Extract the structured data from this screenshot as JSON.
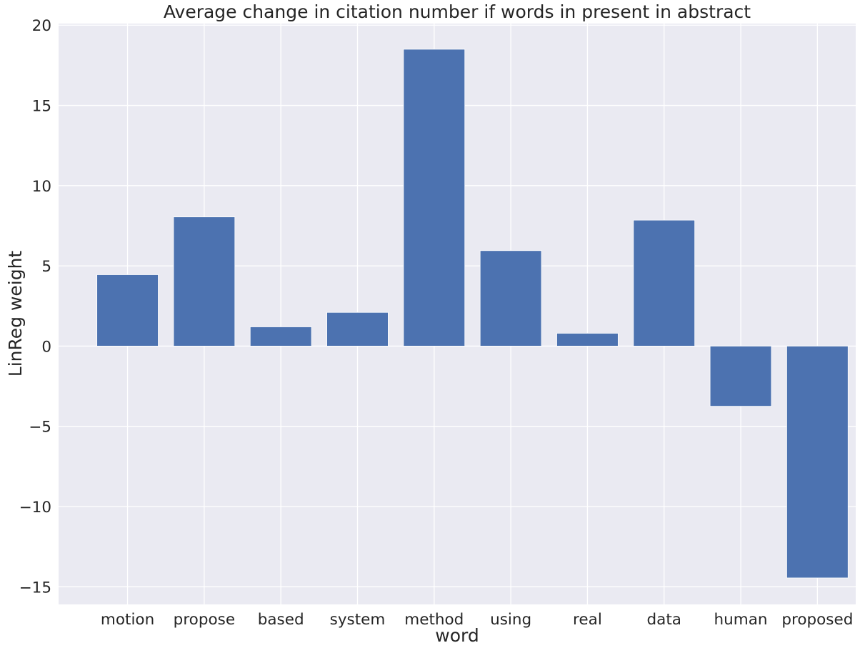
{
  "chart_data": {
    "type": "bar",
    "title": "Average change in citation number if words in present in abstract",
    "xlabel": "word",
    "ylabel": "LinReg weight",
    "categories": [
      "motion",
      "propose",
      "based",
      "system",
      "method",
      "using",
      "real",
      "data",
      "human",
      "proposed"
    ],
    "values": [
      4.45,
      8.05,
      1.2,
      2.1,
      18.5,
      5.95,
      0.8,
      7.85,
      -3.75,
      -14.45
    ],
    "ylim": [
      -16.1,
      20.1
    ],
    "yticks": [
      -15,
      -10,
      -5,
      0,
      5,
      10,
      15,
      20
    ],
    "ytick_labels": [
      "−15",
      "−10",
      "−5",
      "0",
      "5",
      "10",
      "15",
      "20"
    ],
    "grid": true,
    "legend": "none",
    "bar_color": "#4c72b0",
    "background_color": "#eaeaf2",
    "grid_color": "#ffffff"
  }
}
